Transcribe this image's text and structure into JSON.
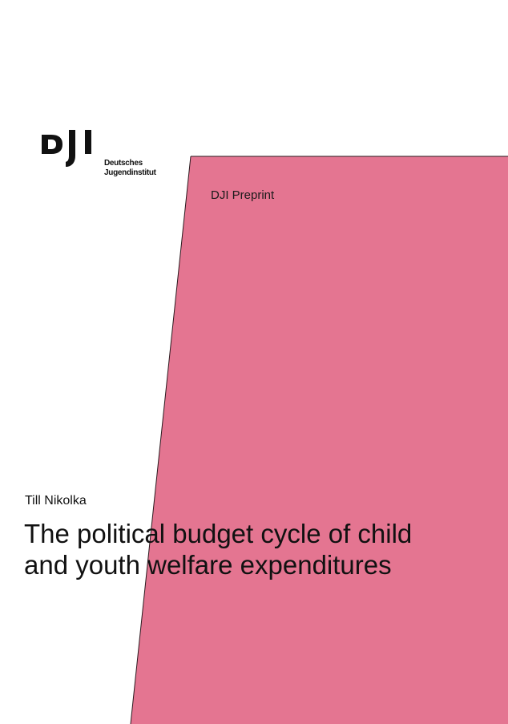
{
  "colors": {
    "accent_pink": "#e47591",
    "text": "#111111",
    "background": "#ffffff"
  },
  "logo": {
    "mark": "DJI",
    "name_line_1": "Deutsches",
    "name_line_2": "Jugendinstitut"
  },
  "series": {
    "label": "DJI Preprint"
  },
  "author": {
    "name": "Till Nikolka"
  },
  "title": {
    "line_1": "The political budget cycle of child",
    "line_2": "and youth welfare expenditures"
  }
}
